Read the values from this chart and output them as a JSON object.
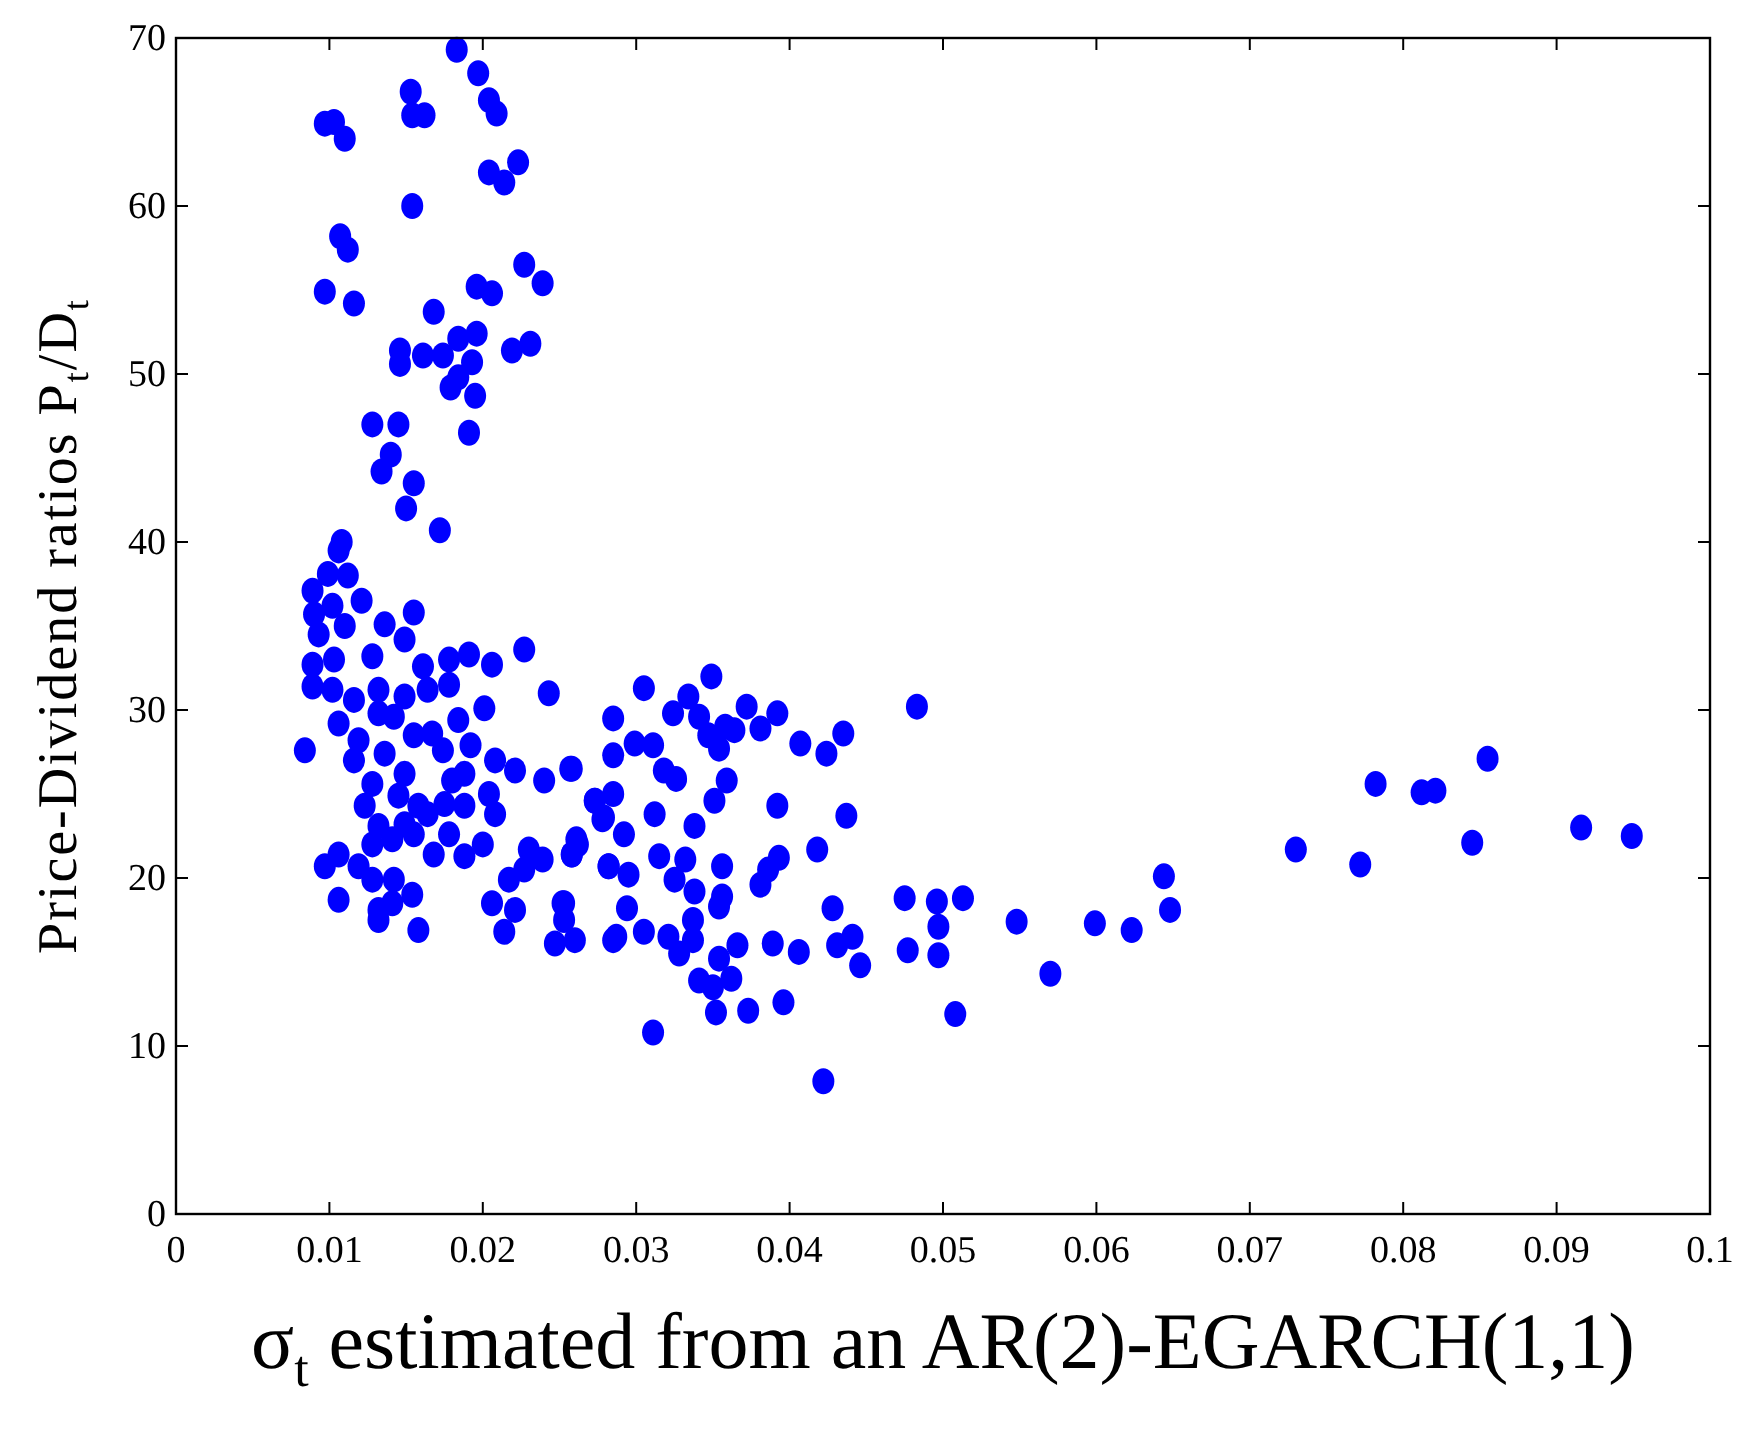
{
  "chart_data": {
    "type": "scatter",
    "xlabel": "σ$_{t}$ estimated from an AR(2)-EGARCH(1,1)",
    "ylabel": "Price-Dividend ratios P$_{t}$/D$_{t}$",
    "xlim": [
      0,
      0.1
    ],
    "ylim": [
      0,
      70
    ],
    "xticks": [
      0,
      0.01,
      0.02,
      0.03,
      0.04,
      0.05,
      0.06,
      0.07,
      0.08,
      0.09,
      0.1
    ],
    "yticks": [
      0,
      10,
      20,
      30,
      40,
      50,
      60,
      70
    ],
    "grid": false,
    "marker": "circle",
    "series": [
      {
        "color": "#0000ff",
        "x": [
          0.0183,
          0.0197,
          0.0153,
          0.0204,
          0.0209,
          0.0154,
          0.0162,
          0.0097,
          0.0103,
          0.011,
          0.0204,
          0.0223,
          0.0214,
          0.0154,
          0.0107,
          0.0112,
          0.0227,
          0.0239,
          0.0097,
          0.0116,
          0.0196,
          0.0206,
          0.0168,
          0.0184,
          0.0196,
          0.0146,
          0.0146,
          0.0161,
          0.0174,
          0.0193,
          0.0219,
          0.0231,
          0.0184,
          0.0179,
          0.0195,
          0.0128,
          0.0145,
          0.0191,
          0.014,
          0.0134,
          0.0155,
          0.015,
          0.0172,
          0.0108,
          0.0106,
          0.0089,
          0.0099,
          0.0112,
          0.0121,
          0.009,
          0.0102,
          0.0093,
          0.011,
          0.0136,
          0.0155,
          0.0089,
          0.0103,
          0.0128,
          0.0149,
          0.0161,
          0.0178,
          0.0191,
          0.0206,
          0.0227,
          0.0089,
          0.0102,
          0.0116,
          0.0132,
          0.0149,
          0.0164,
          0.0178,
          0.0243,
          0.0132,
          0.0142,
          0.0184,
          0.0201,
          0.0106,
          0.0084,
          0.0119,
          0.0155,
          0.0167,
          0.0174,
          0.0192,
          0.0116,
          0.0136,
          0.0149,
          0.0128,
          0.018,
          0.0188,
          0.0208,
          0.0221,
          0.024,
          0.0258,
          0.0123,
          0.0145,
          0.0158,
          0.0175,
          0.0188,
          0.0204,
          0.0273,
          0.0132,
          0.0149,
          0.0164,
          0.0178,
          0.0208,
          0.0278,
          0.0128,
          0.0141,
          0.0155,
          0.02,
          0.0097,
          0.0106,
          0.0119,
          0.0168,
          0.0188,
          0.023,
          0.0239,
          0.0262,
          0.0258,
          0.0128,
          0.0142,
          0.0217,
          0.0227,
          0.0282,
          0.0106,
          0.0132,
          0.0141,
          0.0154,
          0.0206,
          0.0221,
          0.0252,
          0.0253,
          0.0132,
          0.0158,
          0.0214,
          0.0247,
          0.026,
          0.0285,
          0.0305,
          0.0349,
          0.0334,
          0.0285,
          0.0324,
          0.0341,
          0.0372,
          0.0392,
          0.0483,
          0.0358,
          0.0364,
          0.0381,
          0.0299,
          0.0311,
          0.0285,
          0.0347,
          0.0354,
          0.0407,
          0.0435,
          0.0424,
          0.0257,
          0.0318,
          0.0326,
          0.0359,
          0.0273,
          0.0285,
          0.0351,
          0.0279,
          0.0312,
          0.0338,
          0.0392,
          0.0437,
          0.0292,
          0.0261,
          0.0258,
          0.0282,
          0.0295,
          0.0315,
          0.0332,
          0.0356,
          0.0325,
          0.0338,
          0.0356,
          0.0354,
          0.0386,
          0.0393,
          0.0381,
          0.0418,
          0.0253,
          0.0294,
          0.0305,
          0.0287,
          0.0321,
          0.0328,
          0.0337,
          0.0337,
          0.0354,
          0.0366,
          0.0389,
          0.0406,
          0.0428,
          0.0431,
          0.0441,
          0.0446,
          0.0341,
          0.035,
          0.0362,
          0.0352,
          0.0373,
          0.0396,
          0.0311,
          0.0422,
          0.0475,
          0.0496,
          0.0513,
          0.0497,
          0.0548,
          0.0477,
          0.0497,
          0.0508,
          0.057,
          0.0599,
          0.0623,
          0.0644,
          0.0648,
          0.073,
          0.0772,
          0.0782,
          0.0812,
          0.0821,
          0.0855,
          0.0845,
          0.0916,
          0.0949
        ],
        "values": [
          69.3,
          67.9,
          66.8,
          66.3,
          65.5,
          65.4,
          65.4,
          64.9,
          65.0,
          64.0,
          62.0,
          62.6,
          61.4,
          60.0,
          58.2,
          57.4,
          56.5,
          55.4,
          54.9,
          54.2,
          55.2,
          54.8,
          53.7,
          52.1,
          52.4,
          51.4,
          50.6,
          51.1,
          51.1,
          50.7,
          51.4,
          51.8,
          49.8,
          49.2,
          48.7,
          47.0,
          47.0,
          46.5,
          45.2,
          44.2,
          43.5,
          42.0,
          40.7,
          40.0,
          39.5,
          37.1,
          38.1,
          38.0,
          36.5,
          35.7,
          36.2,
          34.5,
          35.0,
          35.1,
          35.8,
          32.7,
          33.0,
          33.2,
          34.2,
          32.6,
          33.0,
          33.3,
          32.7,
          33.6,
          31.4,
          31.2,
          30.6,
          31.2,
          30.8,
          31.2,
          31.5,
          31.0,
          29.8,
          29.6,
          29.4,
          30.1,
          29.2,
          27.6,
          28.2,
          28.5,
          28.6,
          27.6,
          27.9,
          27.0,
          27.4,
          26.2,
          25.6,
          25.8,
          26.2,
          27.0,
          26.4,
          25.8,
          26.5,
          24.3,
          24.9,
          24.3,
          24.4,
          24.3,
          25.0,
          24.6,
          23.1,
          23.2,
          23.8,
          22.6,
          23.8,
          23.5,
          22.0,
          22.3,
          22.6,
          22.0,
          20.7,
          21.4,
          20.7,
          21.4,
          21.3,
          21.7,
          21.1,
          22.0,
          21.4,
          19.9,
          19.9,
          19.9,
          20.5,
          20.7,
          18.7,
          18.1,
          18.5,
          19.0,
          18.5,
          18.1,
          18.5,
          17.5,
          17.5,
          16.9,
          16.8,
          16.1,
          16.3,
          16.3,
          31.3,
          32.0,
          30.8,
          29.5,
          29.8,
          29.6,
          30.2,
          29.8,
          30.2,
          29.0,
          28.8,
          28.9,
          28.0,
          27.9,
          27.3,
          28.5,
          27.7,
          28.0,
          28.6,
          27.4,
          26.5,
          26.4,
          25.9,
          25.8,
          24.6,
          25.0,
          24.6,
          23.6,
          23.8,
          23.1,
          24.3,
          23.7,
          22.6,
          22.3,
          21.4,
          20.7,
          20.2,
          21.3,
          21.1,
          20.7,
          19.9,
          19.2,
          18.9,
          18.3,
          20.5,
          21.2,
          19.6,
          21.7,
          18.5,
          18.2,
          16.8,
          16.5,
          16.5,
          15.5,
          17.5,
          16.3,
          15.2,
          16.0,
          16.1,
          15.6,
          18.2,
          16.0,
          16.5,
          14.8,
          13.9,
          13.5,
          14.0,
          12.0,
          12.1,
          12.6,
          10.8,
          7.9,
          18.8,
          18.6,
          18.8,
          17.1,
          17.4,
          15.7,
          15.4,
          11.9,
          14.3,
          17.3,
          16.9,
          20.1,
          18.1,
          21.7,
          20.8,
          25.6,
          25.1,
          25.2,
          27.1,
          22.1,
          23.0,
          22.5
        ]
      }
    ]
  }
}
